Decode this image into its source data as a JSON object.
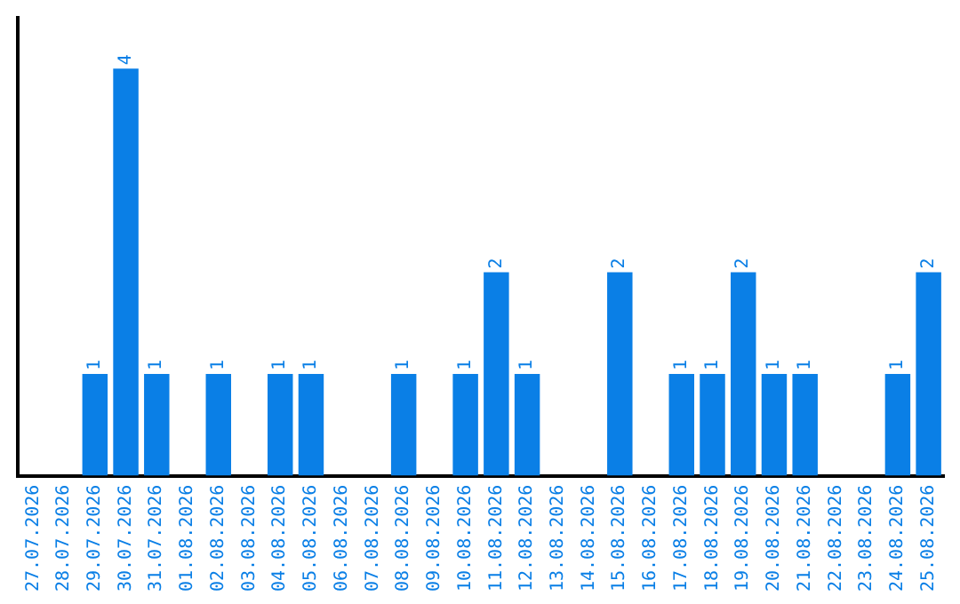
{
  "chart_data": {
    "type": "bar",
    "categories": [
      "27.07.2026",
      "28.07.2026",
      "29.07.2026",
      "30.07.2026",
      "31.07.2026",
      "01.08.2026",
      "02.08.2026",
      "03.08.2026",
      "04.08.2026",
      "05.08.2026",
      "06.08.2026",
      "07.08.2026",
      "08.08.2026",
      "09.08.2026",
      "10.08.2026",
      "11.08.2026",
      "12.08.2026",
      "13.08.2026",
      "14.08.2026",
      "15.08.2026",
      "16.08.2026",
      "17.08.2026",
      "18.08.2026",
      "19.08.2026",
      "20.08.2026",
      "21.08.2026",
      "22.08.2026",
      "23.08.2026",
      "24.08.2026",
      "25.08.2026"
    ],
    "values": [
      0,
      0,
      1,
      4,
      1,
      0,
      1,
      0,
      1,
      1,
      0,
      0,
      1,
      0,
      1,
      2,
      1,
      0,
      0,
      2,
      0,
      1,
      1,
      2,
      1,
      1,
      0,
      0,
      1,
      2
    ],
    "value_labels": [
      null,
      null,
      "1",
      "4",
      "1",
      null,
      "1",
      null,
      "1",
      "1",
      null,
      null,
      "1",
      null,
      "1",
      "2",
      "1",
      null,
      null,
      "2",
      null,
      "1",
      "1",
      "2",
      "1",
      "1",
      null,
      null,
      "1",
      "2"
    ],
    "color": "#0a7fe6",
    "tick_labels": "x",
    "grid": false,
    "legend": false
  }
}
